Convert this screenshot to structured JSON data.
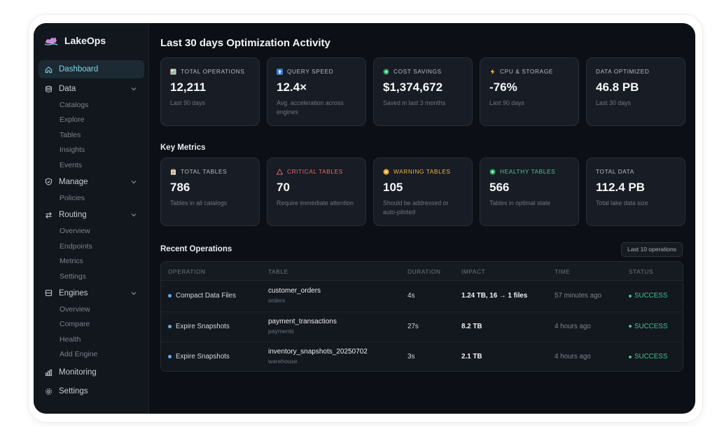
{
  "app": {
    "name": "LakeOps"
  },
  "sidebar": {
    "items": [
      {
        "label": "Dashboard",
        "icon": "home-icon",
        "active": true
      },
      {
        "label": "Data",
        "icon": "database-icon",
        "sub": [
          "Catalogs",
          "Explore",
          "Tables",
          "Insights",
          "Events"
        ]
      },
      {
        "label": "Manage",
        "icon": "shield-icon",
        "sub": [
          "Policies"
        ]
      },
      {
        "label": "Routing",
        "icon": "routing-icon",
        "sub": [
          "Overview",
          "Endpoints",
          "Metrics",
          "Settings"
        ]
      },
      {
        "label": "Engines",
        "icon": "server-icon",
        "sub": [
          "Overview",
          "Compare",
          "Health",
          "Add Engine"
        ]
      },
      {
        "label": "Monitoring",
        "icon": "bar-chart-icon"
      },
      {
        "label": "Settings",
        "icon": "gear-icon"
      }
    ]
  },
  "main": {
    "title": "Last 30 days Optimization Activity",
    "activity": [
      {
        "label": "TOTAL OPERATIONS",
        "icon": "bar-chart-icon",
        "value": "12,211",
        "sub": "Last 90 days"
      },
      {
        "label": "QUERY SPEED",
        "icon": "arrow-up-icon",
        "value": "12.4×",
        "sub": "Avg. acceleration across engines"
      },
      {
        "label": "COST SAVINGS",
        "icon": "green-dot-icon",
        "value": "$1,374,672",
        "sub": "Saved in last 3 months"
      },
      {
        "label": "CPU & STORAGE",
        "icon": "lightning-icon",
        "value": "-76%",
        "sub": "Last 90 days"
      },
      {
        "label": "DATA OPTIMIZED",
        "icon": "",
        "value": "46.8 PB",
        "sub": "Last 30 days"
      }
    ],
    "key_metrics_title": "Key Metrics",
    "metrics": [
      {
        "label": "TOTAL TABLES",
        "icon": "clipboard-icon",
        "value": "786",
        "sub": "Tables in all catalogs"
      },
      {
        "label": "CRITICAL TABLES",
        "icon": "warning-triangle-icon",
        "value": "70",
        "sub": "Require immediate attention"
      },
      {
        "label": "WARNING TABLES",
        "icon": "yellow-dot-icon",
        "value": "105",
        "sub": "Should be addressed or auto-piloted"
      },
      {
        "label": "HEALTHY TABLES",
        "icon": "green-dot-icon",
        "value": "566",
        "sub": "Tables in optimal state"
      },
      {
        "label": "TOTAL DATA",
        "icon": "",
        "value": "112.4 PB",
        "sub": "Total lake data size"
      }
    ],
    "recent_title": "Recent Operations",
    "recent_button": "Last 10 operations",
    "columns": [
      "OPERATION",
      "TABLE",
      "DURATION",
      "IMPACT",
      "TIME",
      "STATUS"
    ],
    "rows": [
      {
        "operation": "Compact Data Files",
        "table": "customer_orders",
        "schema": "orders",
        "duration": "4s",
        "impact": "1.24 TB, 16 → 1 files",
        "time": "57 minutes ago",
        "status": "SUCCESS"
      },
      {
        "operation": "Expire Snapshots",
        "table": "payment_transactions",
        "schema": "payments",
        "duration": "27s",
        "impact": "8.2 TB",
        "time": "4 hours ago",
        "status": "SUCCESS"
      },
      {
        "operation": "Expire Snapshots",
        "table": "inventory_snapshots_20250702",
        "schema": "warehouse",
        "duration": "3s",
        "impact": "2.1 TB",
        "time": "4 hours ago",
        "status": "SUCCESS"
      }
    ]
  },
  "colors": {
    "background": "#0c0f15",
    "accent": "#7fd3e0",
    "critical": "#ea6a6a",
    "warning": "#e9b84c",
    "healthy": "#4fc29a",
    "success": "#48c28e"
  }
}
